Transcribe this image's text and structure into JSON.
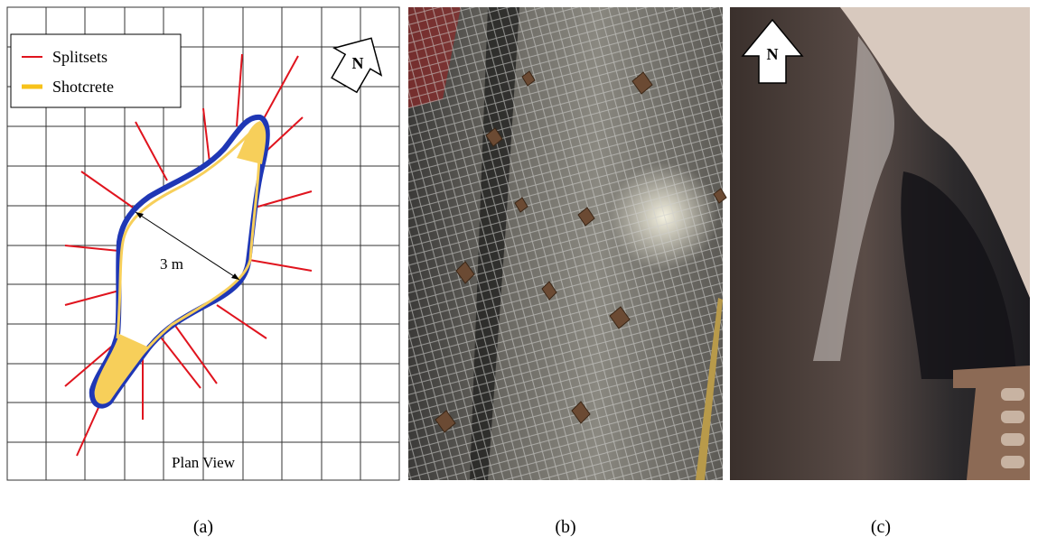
{
  "panels": [
    {
      "label": "(a)",
      "legend": [
        "Splitsets",
        "Shotcrete"
      ],
      "north": "N",
      "dimension": "3 m",
      "caption": "Plan View"
    },
    {
      "label": "(b)"
    },
    {
      "label": "(c)",
      "north": "N"
    }
  ]
}
